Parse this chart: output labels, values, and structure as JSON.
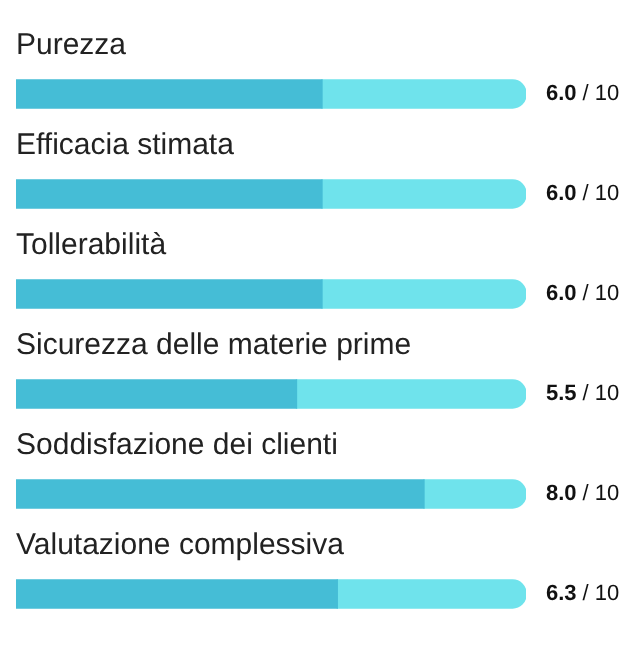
{
  "chart_data": {
    "type": "bar",
    "orientation": "horizontal",
    "stacked": true,
    "categories": [
      "Purezza",
      "Efficacia stimata",
      "Tollerabilità",
      "Sicurezza delle materie prime",
      "Soddisfazione dei clienti",
      "Valutazione complessiva"
    ],
    "series": [
      {
        "color": "#45bdd6",
        "values": [
          6.0,
          6.0,
          6.0,
          5.5,
          8.0,
          6.3
        ],
        "value_labels": [
          "6.0",
          "6.0",
          "6.0",
          "5.5",
          "8.0",
          "6.3"
        ]
      },
      {
        "color": "#6fe3ec",
        "values": [
          4.0,
          4.0,
          4.0,
          4.5,
          2.0,
          3.7
        ]
      }
    ],
    "annotations": [
      "/ 10",
      "/ 10",
      "/ 10",
      "/ 10",
      "/ 10",
      "/ 10"
    ],
    "xlim": [
      0,
      10
    ],
    "tick_labels": false,
    "legend": false
  }
}
